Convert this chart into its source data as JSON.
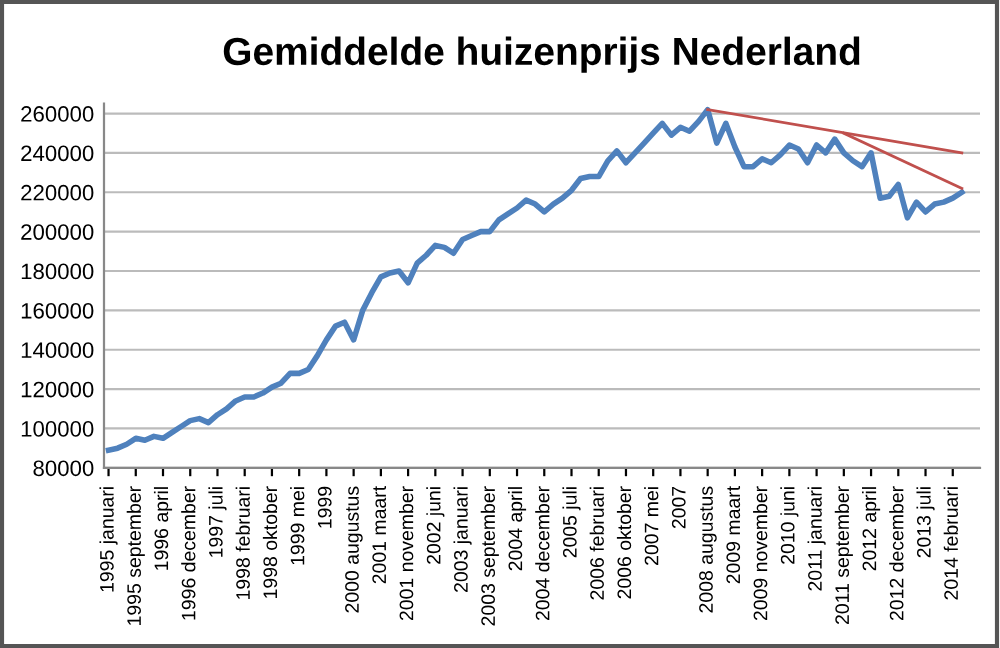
{
  "chart_data": {
    "type": "line",
    "title": "Gemiddelde huizenprijs Nederland",
    "categories": [
      "1995 januari",
      null,
      null,
      "1995 september",
      null,
      null,
      "1996 april",
      null,
      null,
      "1996 december",
      null,
      null,
      "1997 juli",
      null,
      null,
      "1998 februari",
      null,
      null,
      "1998 oktober",
      null,
      null,
      "1999 mei",
      null,
      null,
      "1999",
      null,
      null,
      "2000 augustus",
      null,
      null,
      "2001 maart",
      null,
      null,
      "2001 november",
      null,
      null,
      "2002 juni",
      null,
      null,
      "2003 januari",
      null,
      null,
      "2003 september",
      null,
      null,
      "2004 april",
      null,
      null,
      "2004 december",
      null,
      null,
      "2005 juli",
      null,
      null,
      "2006 februari",
      null,
      null,
      "2006 oktober",
      null,
      null,
      "2007 mei",
      null,
      null,
      "2007",
      null,
      null,
      "2008 augustus",
      null,
      null,
      "2009 maart",
      null,
      null,
      "2009 november",
      null,
      null,
      "2010 juni",
      null,
      null,
      "2011 januari",
      null,
      null,
      "2011 september",
      null,
      null,
      "2012 april",
      null,
      null,
      "2012 december",
      null,
      null,
      "2013 juli",
      null,
      null,
      "2014 februari",
      null
    ],
    "series": [
      {
        "color": "#4f81bd",
        "values": [
          89000,
          90000,
          92000,
          95000,
          94000,
          96000,
          95000,
          98000,
          101000,
          104000,
          105000,
          103000,
          107000,
          110000,
          114000,
          116000,
          116000,
          118000,
          121000,
          123000,
          128000,
          128000,
          130000,
          137000,
          145000,
          152000,
          154000,
          145000,
          160000,
          169000,
          177000,
          179000,
          180000,
          174000,
          184000,
          188000,
          193000,
          192000,
          189000,
          196000,
          198000,
          200000,
          200000,
          206000,
          209000,
          212000,
          216000,
          214000,
          210000,
          214000,
          217000,
          221000,
          227000,
          228000,
          228000,
          236000,
          241000,
          235000,
          240000,
          245000,
          250000,
          255000,
          249000,
          253000,
          251000,
          256000,
          262000,
          245000,
          255000,
          243000,
          233000,
          233000,
          237000,
          235000,
          239000,
          244000,
          242000,
          235000,
          244000,
          240000,
          247000,
          240000,
          236000,
          233000,
          240000,
          217000,
          218000,
          224000,
          207000,
          215000,
          210000,
          214000,
          215000,
          217000,
          220000
        ]
      },
      {
        "color": "#c0504d",
        "values": [
          null,
          null,
          null,
          null,
          null,
          null,
          null,
          null,
          null,
          null,
          null,
          null,
          null,
          null,
          null,
          null,
          null,
          null,
          null,
          null,
          null,
          null,
          null,
          null,
          null,
          null,
          null,
          null,
          null,
          null,
          null,
          null,
          null,
          null,
          null,
          null,
          null,
          null,
          null,
          null,
          null,
          null,
          null,
          null,
          null,
          null,
          null,
          null,
          null,
          null,
          null,
          null,
          null,
          null,
          null,
          null,
          null,
          null,
          null,
          null,
          null,
          null,
          null,
          null,
          null,
          null,
          262000,
          null,
          null,
          null,
          null,
          null,
          null,
          null,
          null,
          null,
          null,
          null,
          null,
          null,
          null,
          null,
          null,
          null,
          null,
          null,
          null,
          null,
          null,
          null,
          null,
          null,
          null,
          null,
          240000
        ]
      },
      {
        "color": "#c0504d",
        "values": [
          null,
          null,
          null,
          null,
          null,
          null,
          null,
          null,
          null,
          null,
          null,
          null,
          null,
          null,
          null,
          null,
          null,
          null,
          null,
          null,
          null,
          null,
          null,
          null,
          null,
          null,
          null,
          null,
          null,
          null,
          null,
          null,
          null,
          null,
          null,
          null,
          null,
          null,
          null,
          null,
          null,
          null,
          null,
          null,
          null,
          null,
          null,
          null,
          null,
          null,
          null,
          null,
          null,
          null,
          null,
          null,
          null,
          null,
          null,
          null,
          null,
          null,
          null,
          null,
          null,
          null,
          null,
          null,
          null,
          null,
          null,
          null,
          null,
          null,
          null,
          null,
          null,
          null,
          null,
          null,
          null,
          250000,
          null,
          null,
          null,
          null,
          null,
          null,
          null,
          null,
          null,
          null,
          null,
          null,
          222000
        ]
      }
    ],
    "ylim": [
      80000,
      265000
    ],
    "yticks": [
      80000,
      100000,
      120000,
      140000,
      160000,
      180000,
      200000,
      220000,
      240000,
      260000
    ],
    "grid": "y",
    "legend": false,
    "marker": "none",
    "line_style": "solid"
  }
}
